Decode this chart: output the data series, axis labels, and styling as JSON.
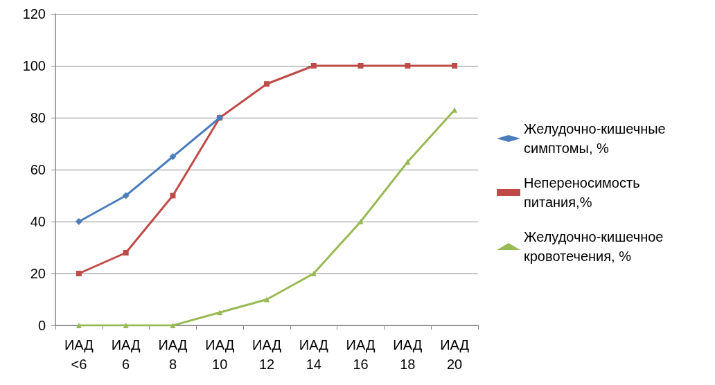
{
  "chart_data": {
    "type": "line",
    "categories": [
      "ИАД <6",
      "ИАД 6",
      "ИАД 8",
      "ИАД 10",
      "ИАД 12",
      "ИАД 14",
      "ИАД 16",
      "ИАД 18",
      "ИАД 20"
    ],
    "ylim": [
      0,
      120
    ],
    "yticks": [
      0,
      20,
      40,
      60,
      80,
      100,
      120
    ],
    "grid": "y",
    "legend": "right",
    "series": [
      {
        "name": "Желудочно-кишечные симптомы, %",
        "color": "#4a7ebb",
        "marker": "diamond",
        "values": [
          40,
          50,
          65,
          80,
          null,
          null,
          null,
          null,
          null
        ]
      },
      {
        "name": "Непереносимость питания,%",
        "color": "#be4b48",
        "marker": "square",
        "values": [
          20,
          28,
          50,
          80,
          93,
          100,
          100,
          100,
          100
        ]
      },
      {
        "name": "Желудочно-кишечное кровотечения, %",
        "color": "#98b954",
        "marker": "triangle",
        "values": [
          0,
          0,
          0,
          5,
          10,
          20,
          40,
          63,
          83
        ]
      }
    ]
  }
}
